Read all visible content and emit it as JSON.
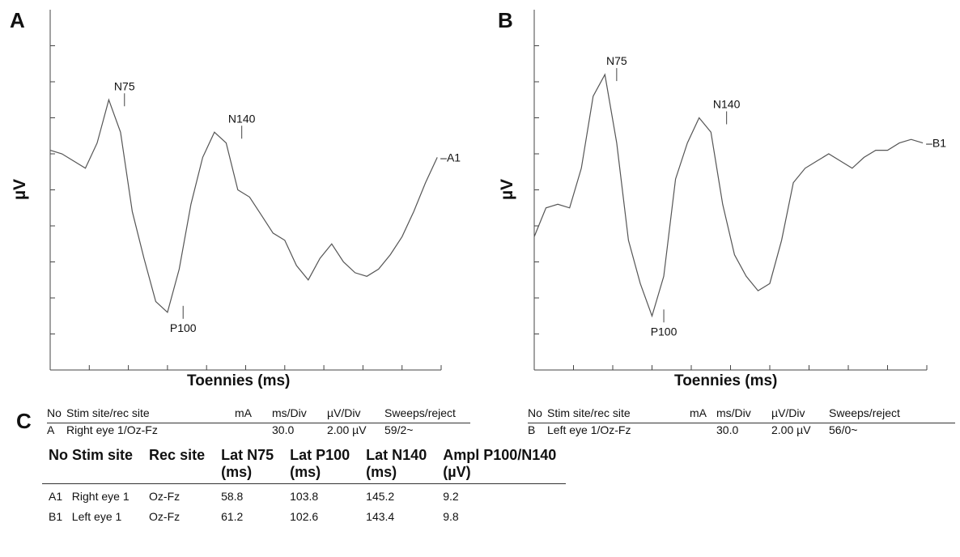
{
  "chart_data": [
    {
      "panel": "A",
      "type": "line",
      "xlabel": "Toennies (ms)",
      "ylabel": "µV",
      "trace_label": "–A1",
      "x_divisions": 10,
      "y_divisions": 10,
      "series": [
        {
          "name": "A1",
          "x": [
            0.0,
            0.3,
            0.6,
            0.9,
            1.2,
            1.5,
            1.8,
            2.1,
            2.4,
            2.7,
            3.0,
            3.3,
            3.6,
            3.9,
            4.2,
            4.5,
            4.8,
            5.1,
            5.4,
            5.7,
            6.0,
            6.3,
            6.6,
            6.9,
            7.2,
            7.5,
            7.8,
            8.1,
            8.4,
            8.7,
            9.0,
            9.3,
            9.6,
            9.9
          ],
          "y": [
            6.1,
            6.0,
            5.8,
            5.6,
            6.3,
            7.5,
            6.6,
            4.4,
            3.1,
            1.9,
            1.6,
            2.8,
            4.6,
            5.9,
            6.6,
            6.3,
            5.0,
            4.8,
            4.3,
            3.8,
            3.6,
            2.9,
            2.5,
            3.1,
            3.5,
            3.0,
            2.7,
            2.6,
            2.8,
            3.2,
            3.7,
            4.4,
            5.2,
            5.9
          ]
        }
      ],
      "annotations": [
        {
          "text": "N75",
          "x": 1.9,
          "y": 7.5,
          "pos": "above"
        },
        {
          "text": "P100",
          "x": 3.4,
          "y": 1.6,
          "pos": "below"
        },
        {
          "text": "N140",
          "x": 4.9,
          "y": 6.6,
          "pos": "above"
        }
      ]
    },
    {
      "panel": "B",
      "type": "line",
      "xlabel": "Toennies (ms)",
      "ylabel": "µV",
      "trace_label": "–B1",
      "x_divisions": 10,
      "y_divisions": 10,
      "series": [
        {
          "name": "B1",
          "x": [
            0.0,
            0.3,
            0.6,
            0.9,
            1.2,
            1.5,
            1.8,
            2.1,
            2.4,
            2.7,
            3.0,
            3.3,
            3.6,
            3.9,
            4.2,
            4.5,
            4.8,
            5.1,
            5.4,
            5.7,
            6.0,
            6.3,
            6.6,
            6.9,
            7.2,
            7.5,
            7.8,
            8.1,
            8.4,
            8.7,
            9.0,
            9.3,
            9.6,
            9.9
          ],
          "y": [
            3.7,
            4.5,
            4.6,
            4.5,
            5.6,
            7.6,
            8.2,
            6.3,
            3.6,
            2.4,
            1.5,
            2.6,
            5.3,
            6.3,
            7.0,
            6.6,
            4.6,
            3.2,
            2.6,
            2.2,
            2.4,
            3.6,
            5.2,
            5.6,
            5.8,
            6.0,
            5.8,
            5.6,
            5.9,
            6.1,
            6.1,
            6.3,
            6.4,
            6.3
          ]
        }
      ],
      "annotations": [
        {
          "text": "N75",
          "x": 2.1,
          "y": 8.2,
          "pos": "above"
        },
        {
          "text": "P100",
          "x": 3.3,
          "y": 1.5,
          "pos": "below"
        },
        {
          "text": "N140",
          "x": 4.9,
          "y": 7.0,
          "pos": "above"
        }
      ]
    }
  ],
  "setup_tables": [
    {
      "panel": "C",
      "headers": [
        "No",
        "Stim site/rec site",
        "mA",
        "ms/Div",
        "µV/Div",
        "Sweeps/reject"
      ],
      "row": [
        "A",
        "Right eye 1/Oz-Fz",
        "",
        "30.0",
        "2.00 µV",
        "59/2~"
      ]
    },
    {
      "headers": [
        "No",
        "Stim site/rec site",
        "mA",
        "ms/Div",
        "µV/Div",
        "Sweeps/reject"
      ],
      "row": [
        "B",
        "Left eye 1/Oz-Fz",
        "",
        "30.0",
        "2.00 µV",
        "56/0~"
      ]
    }
  ],
  "summary_table": {
    "headers": [
      [
        "No",
        "Stim site"
      ],
      [
        "Rec site"
      ],
      [
        "Lat N75",
        "(ms)"
      ],
      [
        "Lat P100",
        "(ms)"
      ],
      [
        "Lat N140",
        "(ms)"
      ],
      [
        "Ampl P100/N140",
        "(µV)"
      ]
    ],
    "rows": [
      [
        "A1",
        "Right eye 1",
        "Oz-Fz",
        "58.8",
        "103.8",
        "145.2",
        "9.2"
      ],
      [
        "B1",
        "Left eye 1",
        "Oz-Fz",
        "61.2",
        "102.6",
        "143.4",
        "9.8"
      ]
    ]
  }
}
